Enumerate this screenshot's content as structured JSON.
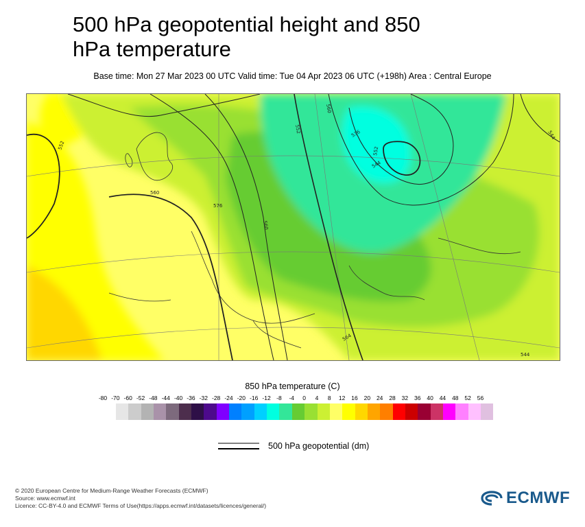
{
  "header": {
    "title": "500 hPa geopotential height and 850 hPa temperature",
    "subtitle": "Base time: Mon 27 Mar 2023 00 UTC Valid time: Tue 04 Apr 2023 06 UTC (+198h) Area : Central Europe"
  },
  "map": {
    "contour_labels": [
      "552",
      "560",
      "576",
      "560",
      "552",
      "560",
      "552",
      "544",
      "564",
      "536",
      "544",
      "544"
    ]
  },
  "legend": {
    "title": "850 hPa temperature (C)",
    "ticks": [
      "-80",
      "-70",
      "-60",
      "-52",
      "-48",
      "-44",
      "-40",
      "-36",
      "-32",
      "-28",
      "-24",
      "-20",
      "-16",
      "-12",
      "-8",
      "-4",
      "0",
      "4",
      "8",
      "12",
      "16",
      "20",
      "24",
      "28",
      "32",
      "36",
      "40",
      "44",
      "48",
      "52",
      "56"
    ],
    "colors": [
      "#e6e6e6",
      "#cccccc",
      "#b3b3b3",
      "#a992a9",
      "#7d6a7d",
      "#4d2e4d",
      "#2e0f47",
      "#4d0a8c",
      "#8000ff",
      "#0080ff",
      "#00a0ff",
      "#00d0ff",
      "#00ffe0",
      "#33e699",
      "#66cc33",
      "#99e033",
      "#ccf033",
      "#ffff66",
      "#ffff00",
      "#ffd700",
      "#ffa500",
      "#ff7f00",
      "#ff0000",
      "#cc0000",
      "#990033",
      "#cc3366",
      "#ff00ff",
      "#ff80ff",
      "#ffc0ff",
      "#e0c0e0",
      "#e6e6e6"
    ],
    "geopotential_label": "500 hPa geopotential (dm)"
  },
  "footer": {
    "line1": "© 2020 European Centre for Medium-Range Weather Forecasts (ECMWF)",
    "line2": "Source: www.ecmwf.int",
    "line3": "Licence: CC-BY-4.0 and ECMWF Terms of Use(https://apps.ecmwf.int/datasets/licences/general/)"
  },
  "logo": {
    "text": "ECMWF"
  }
}
